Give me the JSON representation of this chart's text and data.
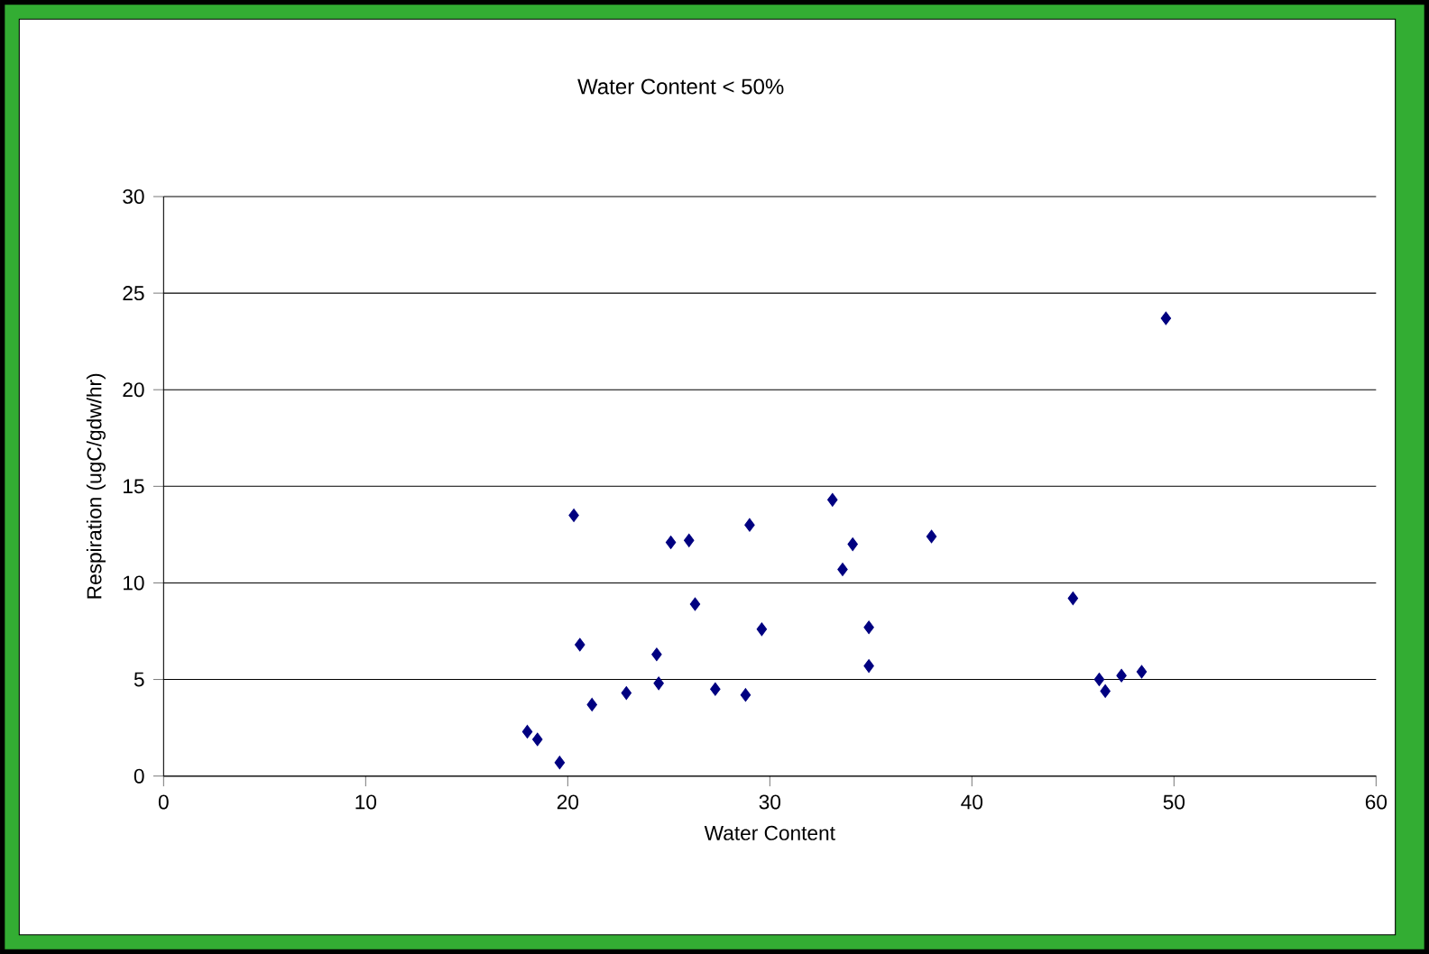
{
  "chart_data": {
    "type": "scatter",
    "title": "Water Content < 50%",
    "xlabel": "Water Content",
    "ylabel": "Respiration (ugC/gdw/hr)",
    "xlim": [
      0,
      60
    ],
    "xticks": [
      0,
      10,
      20,
      30,
      40,
      50,
      60
    ],
    "ylim": [
      0,
      30
    ],
    "yticks": [
      0,
      5,
      10,
      15,
      20,
      25,
      30
    ],
    "grid": "y",
    "marker": "diamond",
    "series": [
      {
        "color": "#000080",
        "x": [
          18.0,
          18.5,
          19.6,
          20.3,
          20.6,
          21.2,
          22.9,
          24.4,
          24.5,
          25.1,
          26.0,
          26.3,
          27.3,
          28.8,
          29.0,
          29.6,
          33.1,
          33.6,
          34.1,
          34.9,
          34.9,
          38.0,
          45.0,
          46.3,
          46.6,
          47.4,
          48.4,
          49.6
        ],
        "values": [
          2.3,
          1.9,
          0.7,
          13.5,
          6.8,
          3.7,
          4.3,
          6.3,
          4.8,
          12.1,
          12.2,
          8.9,
          4.5,
          4.2,
          13.0,
          7.6,
          14.3,
          10.7,
          12.0,
          7.7,
          5.7,
          12.4,
          9.2,
          5.0,
          4.4,
          5.2,
          5.4,
          23.7
        ]
      }
    ]
  }
}
